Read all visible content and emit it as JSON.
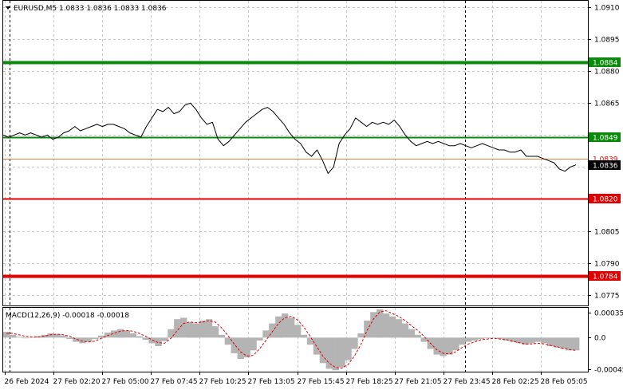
{
  "window": {
    "symbol_header": "EURUSD,M5  1.0833 1.0836 1.0833 1.0836",
    "macd_header": "MACD(12,26,9) -0.00018 -0.00018"
  },
  "colors": {
    "price_line": "#000000",
    "support_red": "#e00000",
    "resistance_green": "#0a8a0a",
    "bid_line": "#e08040",
    "macd_hist": "#b4b4b4",
    "macd_signal": "#e00000",
    "grid": "#c8c8c8"
  },
  "chart_data": {
    "type": "line",
    "title": "EURUSD,M5",
    "ohlc_header": {
      "open": 1.0833,
      "high": 1.0836,
      "low": 1.0833,
      "close": 1.0836
    },
    "price_axis": {
      "ylim": [
        1.077,
        1.0913
      ],
      "ticks": [
        "1.0910",
        "1.0895",
        "1.0880",
        "1.0865",
        "1.0850",
        "1.0835",
        "1.0820",
        "1.0805",
        "1.0790",
        "1.0775"
      ]
    },
    "time_axis": {
      "ticks": [
        "26 Feb 2024",
        "27 Feb 02:20",
        "27 Feb 05:00",
        "27 Feb 07:45",
        "27 Feb 10:25",
        "27 Feb 13:05",
        "27 Feb 15:45",
        "27 Feb 18:25",
        "27 Feb 21:05",
        "27 Feb 23:45",
        "28 Feb 02:25",
        "28 Feb 05:05"
      ],
      "period_separators": [
        "27 Feb 2024",
        "28 Feb 2024"
      ]
    },
    "price_series": {
      "name": "EURUSD",
      "values": [
        1.085,
        1.0849,
        1.085,
        1.0851,
        1.085,
        1.0851,
        1.085,
        1.0849,
        1.085,
        1.0848,
        1.0849,
        1.0851,
        1.0852,
        1.0854,
        1.0852,
        1.0853,
        1.0854,
        1.0855,
        1.0854,
        1.0855,
        1.0855,
        1.0854,
        1.0853,
        1.0851,
        1.085,
        1.0849,
        1.0854,
        1.0858,
        1.0862,
        1.0861,
        1.0863,
        1.086,
        1.0861,
        1.0864,
        1.0865,
        1.0862,
        1.0858,
        1.0855,
        1.0856,
        1.0848,
        1.0845,
        1.0847,
        1.085,
        1.0853,
        1.0856,
        1.0858,
        1.086,
        1.0862,
        1.0863,
        1.0861,
        1.0858,
        1.0855,
        1.0851,
        1.0848,
        1.0846,
        1.0842,
        1.084,
        1.0843,
        1.0838,
        1.0832,
        1.0835,
        1.0846,
        1.085,
        1.0853,
        1.0858,
        1.0856,
        1.0854,
        1.0856,
        1.0855,
        1.0856,
        1.0855,
        1.0857,
        1.0854,
        1.085,
        1.0847,
        1.0845,
        1.0846,
        1.0847,
        1.0846,
        1.0847,
        1.0846,
        1.0845,
        1.0845,
        1.0846,
        1.0845,
        1.0844,
        1.0845,
        1.0846,
        1.0845,
        1.0844,
        1.0843,
        1.0843,
        1.0842,
        1.0842,
        1.0843,
        1.084,
        1.084,
        1.084,
        1.0839,
        1.0838,
        1.0837,
        1.0834,
        1.0833,
        1.0835,
        1.0836
      ]
    },
    "levels": [
      {
        "label": "1.0884",
        "value": 1.0884,
        "role": "resistance"
      },
      {
        "label": "1.0849",
        "value": 1.0849,
        "role": "resistance"
      },
      {
        "label": "1.0839",
        "value": 1.0839,
        "role": "ask"
      },
      {
        "label": "1.0836",
        "value": 1.0836,
        "role": "bid"
      },
      {
        "label": "1.0820",
        "value": 1.082,
        "role": "support"
      },
      {
        "label": "1.0784",
        "value": 1.0784,
        "role": "support"
      }
    ],
    "macd": {
      "params": "12,26,9",
      "main": -0.00018,
      "signal": -0.00018,
      "ylim": [
        -0.00048,
        0.00042
      ],
      "ticks": [
        "0.00035",
        "0.0",
        "-0.00045"
      ],
      "histogram": [
        8e-05,
        4e-05,
        1e-05,
        -1e-05,
        0.0,
        2e-05,
        4e-05,
        6e-05,
        5e-05,
        3e-05,
        -2e-05,
        -6e-05,
        -8e-05,
        -6e-05,
        -2e-05,
        3e-05,
        7e-05,
        0.0001,
        0.00012,
        0.0001,
        6e-05,
        2e-05,
        -3e-05,
        -8e-05,
        -0.00012,
        -5e-05,
        0.00012,
        0.00026,
        0.00028,
        0.00022,
        0.0002,
        0.00024,
        0.00026,
        0.00016,
        4e-05,
        -0.0001,
        -0.00022,
        -0.0003,
        -0.00028,
        -0.00018,
        -4e-05,
        0.0001,
        0.0002,
        0.0003,
        0.00034,
        0.00028,
        0.00018,
        4e-05,
        -0.0001,
        -0.00024,
        -0.00036,
        -0.00044,
        -0.00046,
        -0.00042,
        -0.00032,
        -0.00016,
        6e-05,
        0.00024,
        0.00036,
        0.0004,
        0.00034,
        0.0003,
        0.00026,
        0.0002,
        0.00012,
        4e-05,
        -6e-05,
        -0.00016,
        -0.00024,
        -0.00026,
        -0.00024,
        -0.00018,
        -0.0001,
        -6e-05,
        -4e-05,
        -2e-05,
        -1e-05,
        0.0,
        -2e-05,
        -4e-05,
        -6e-05,
        -8e-05,
        -0.0001,
        -8e-05,
        -6e-05,
        -8e-05,
        -0.00012,
        -0.00014,
        -0.00016,
        -0.00018,
        -0.00018
      ],
      "signal_line": [
        6e-05,
        6e-05,
        4e-05,
        2e-05,
        1e-05,
        1e-05,
        2e-05,
        4e-05,
        5e-05,
        4e-05,
        2e-05,
        -2e-05,
        -5e-05,
        -6e-05,
        -5e-05,
        -1e-05,
        3e-05,
        6e-05,
        9e-05,
        0.0001,
        9e-05,
        6e-05,
        2e-05,
        -3e-05,
        -7e-05,
        -8e-05,
        -1e-05,
        0.0001,
        0.0002,
        0.00022,
        0.00021,
        0.00022,
        0.00024,
        0.00022,
        0.00014,
        3e-05,
        -9e-05,
        -0.0002,
        -0.00026,
        -0.00025,
        -0.00016,
        -4e-05,
        8e-05,
        0.0002,
        0.00028,
        0.0003,
        0.00025,
        0.00015,
        2e-05,
        -0.00012,
        -0.00026,
        -0.00036,
        -0.00042,
        -0.00043,
        -0.00038,
        -0.00026,
        -0.0001,
        0.0001,
        0.00026,
        0.00036,
        0.00038,
        0.00034,
        0.0003,
        0.00024,
        0.00017,
        0.0001,
        2e-05,
        -8e-05,
        -0.00017,
        -0.00022,
        -0.00023,
        -0.0002,
        -0.00014,
        -9e-05,
        -6e-05,
        -3e-05,
        -2e-05,
        -1e-05,
        -2e-05,
        -3e-05,
        -5e-05,
        -7e-05,
        -9e-05,
        -9e-05,
        -8e-05,
        -9e-05,
        -0.00011,
        -0.00013,
        -0.00015,
        -0.00017,
        -0.00018
      ]
    }
  }
}
